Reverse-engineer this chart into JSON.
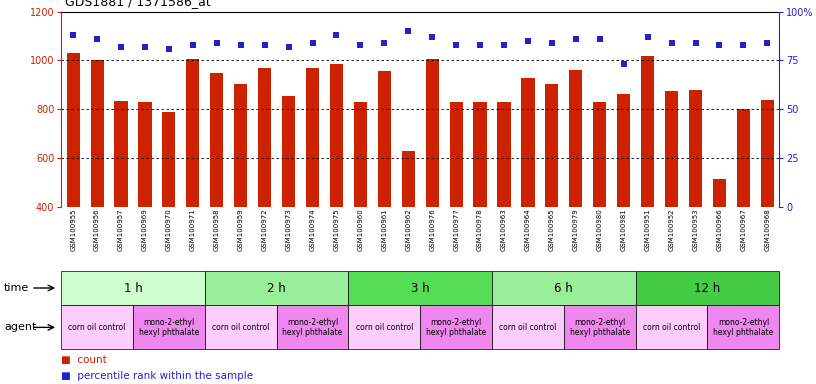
{
  "title": "GDS1881 / 1371586_at",
  "samples": [
    "GSM100955",
    "GSM100956",
    "GSM100957",
    "GSM100969",
    "GSM100970",
    "GSM100971",
    "GSM100958",
    "GSM100959",
    "GSM100972",
    "GSM100973",
    "GSM100974",
    "GSM100975",
    "GSM100960",
    "GSM100961",
    "GSM100962",
    "GSM100976",
    "GSM100977",
    "GSM100978",
    "GSM100963",
    "GSM100964",
    "GSM100965",
    "GSM100979",
    "GSM100980",
    "GSM100981",
    "GSM100951",
    "GSM100952",
    "GSM100953",
    "GSM100966",
    "GSM100967",
    "GSM100968"
  ],
  "counts": [
    1030,
    1000,
    835,
    830,
    790,
    1005,
    950,
    905,
    970,
    855,
    970,
    985,
    830,
    955,
    630,
    1005,
    830,
    830,
    830,
    930,
    905,
    960,
    830,
    865,
    1020,
    875,
    880,
    515,
    800,
    840
  ],
  "percentiles": [
    88,
    86,
    82,
    82,
    81,
    83,
    84,
    83,
    83,
    82,
    84,
    88,
    83,
    84,
    90,
    87,
    83,
    83,
    83,
    85,
    84,
    86,
    86,
    73,
    87,
    84,
    84,
    83,
    83,
    84
  ],
  "time_groups": [
    {
      "label": "1 h",
      "start": 0,
      "end": 6,
      "color": "#ccffcc"
    },
    {
      "label": "2 h",
      "start": 6,
      "end": 12,
      "color": "#99ee99"
    },
    {
      "label": "3 h",
      "start": 12,
      "end": 18,
      "color": "#55dd55"
    },
    {
      "label": "6 h",
      "start": 18,
      "end": 24,
      "color": "#99ee99"
    },
    {
      "label": "12 h",
      "start": 24,
      "end": 30,
      "color": "#44cc44"
    }
  ],
  "agent_groups": [
    {
      "label": "corn oil control",
      "start": 0,
      "end": 3,
      "color": "#ffccff"
    },
    {
      "label": "mono-2-ethyl\nhexyl phthalate",
      "start": 3,
      "end": 6,
      "color": "#ee88ee"
    },
    {
      "label": "corn oil control",
      "start": 6,
      "end": 9,
      "color": "#ffccff"
    },
    {
      "label": "mono-2-ethyl\nhexyl phthalate",
      "start": 9,
      "end": 12,
      "color": "#ee88ee"
    },
    {
      "label": "corn oil control",
      "start": 12,
      "end": 15,
      "color": "#ffccff"
    },
    {
      "label": "mono-2-ethyl\nhexyl phthalate",
      "start": 15,
      "end": 18,
      "color": "#ee88ee"
    },
    {
      "label": "corn oil control",
      "start": 18,
      "end": 21,
      "color": "#ffccff"
    },
    {
      "label": "mono-2-ethyl\nhexyl phthalate",
      "start": 21,
      "end": 24,
      "color": "#ee88ee"
    },
    {
      "label": "corn oil control",
      "start": 24,
      "end": 27,
      "color": "#ffccff"
    },
    {
      "label": "mono-2-ethyl\nhexyl phthalate",
      "start": 27,
      "end": 30,
      "color": "#ee88ee"
    }
  ],
  "bar_color": "#cc2200",
  "dot_color": "#2222cc",
  "ylim_left": [
    400,
    1200
  ],
  "ylim_right": [
    0,
    100
  ],
  "yticks_left": [
    400,
    600,
    800,
    1000,
    1200
  ],
  "yticks_right": [
    0,
    25,
    50,
    75,
    100
  ],
  "grid_values": [
    600,
    800,
    1000
  ],
  "bg_color": "#ffffff",
  "legend_count_label": "count",
  "legend_pct_label": "percentile rank within the sample"
}
